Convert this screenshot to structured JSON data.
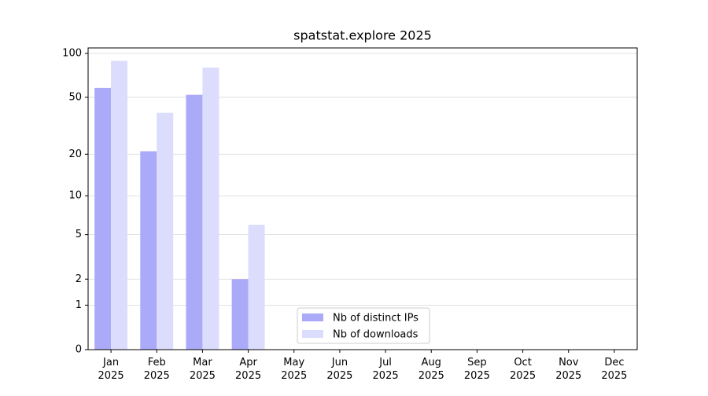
{
  "chart_data": {
    "type": "bar",
    "title": "spatstat.explore 2025",
    "categories": [
      "Jan 2025",
      "Feb 2025",
      "Mar 2025",
      "Apr 2025",
      "May 2025",
      "Jun 2025",
      "Jul 2025",
      "Aug 2025",
      "Sep 2025",
      "Oct 2025",
      "Nov 2025",
      "Dec 2025"
    ],
    "series": [
      {
        "name": "Nb of distinct IPs",
        "color": "#aaaaf8",
        "values": [
          58,
          21,
          52,
          2,
          null,
          null,
          null,
          null,
          null,
          null,
          null,
          null
        ]
      },
      {
        "name": "Nb of downloads",
        "color": "#dcdcfc",
        "values": [
          89,
          39,
          80,
          6,
          null,
          null,
          null,
          null,
          null,
          null,
          null,
          null
        ]
      }
    ],
    "yscale": "log1p",
    "ylim": [
      0,
      109
    ],
    "yticks": [
      0,
      1,
      2,
      5,
      10,
      20,
      50,
      100
    ],
    "grid": true,
    "legend": "lower center"
  }
}
